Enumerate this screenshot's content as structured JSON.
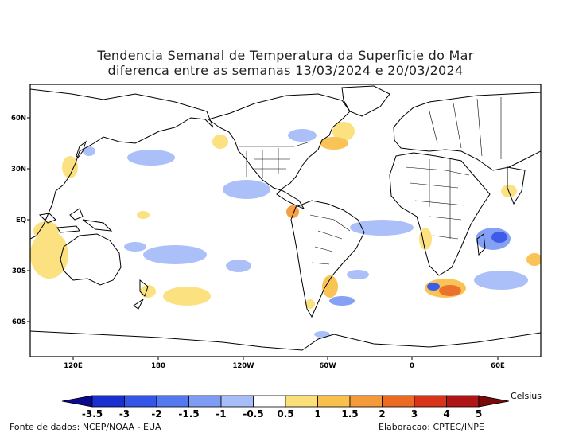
{
  "title": {
    "line1": "Tendencia Semanal de Temperatura da Superficie do Mar",
    "line2": "diferenca entre as semanas 13/03/2024 e 20/03/2024"
  },
  "axes": {
    "lat_labels": [
      "60N",
      "30N",
      "EQ",
      "30S",
      "60S"
    ],
    "lon_labels": [
      "120E",
      "180",
      "120W",
      "60W",
      "0",
      "60E"
    ]
  },
  "legend": {
    "unit": "Celsius",
    "ticks": [
      "-3.5",
      "-3",
      "-2",
      "-1.5",
      "-1",
      "-0.5",
      "0.5",
      "1",
      "1.5",
      "2",
      "3",
      "4",
      "5"
    ],
    "colors": [
      "#0a0a8c",
      "#1a2fd0",
      "#3355e8",
      "#5577f0",
      "#7f9cf5",
      "#a7bdf8",
      "#ffffff",
      "#fbe07a",
      "#f9c04c",
      "#f49a3a",
      "#ec6a22",
      "#d8341a",
      "#b01414",
      "#7a0a0a"
    ]
  },
  "footer": {
    "source": "Fonte de dados: NCEP/NOAA - EUA",
    "credit": "Elaboracao: CPTEC/INPE"
  }
}
